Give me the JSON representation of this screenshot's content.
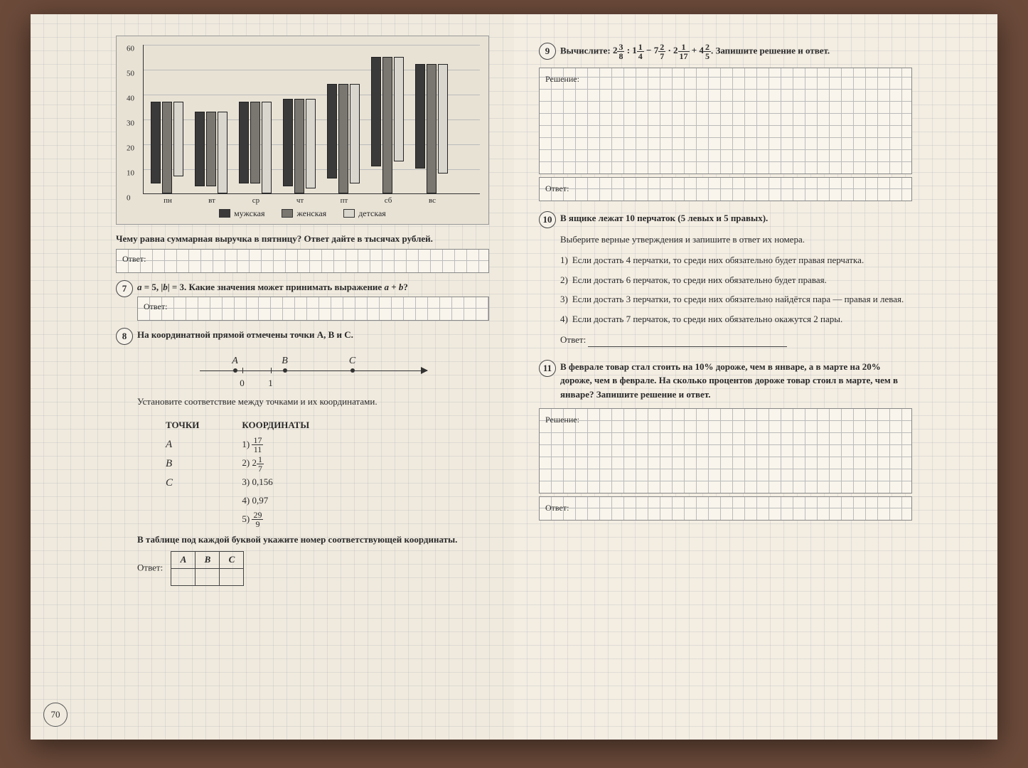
{
  "page_number": "70",
  "chart": {
    "type": "grouped-bar",
    "ylim": [
      0,
      60
    ],
    "ytick_step": 10,
    "yticks": [
      "0",
      "10",
      "20",
      "30",
      "40",
      "50",
      "60"
    ],
    "categories": [
      "пн",
      "вт",
      "ср",
      "чт",
      "пт",
      "сб",
      "вс"
    ],
    "series": [
      {
        "name": "мужская",
        "color": "#3a3a3a",
        "values": [
          33,
          30,
          33,
          35,
          38,
          44,
          42
        ]
      },
      {
        "name": "женская",
        "color": "#7a7770",
        "values": [
          37,
          30,
          33,
          38,
          44,
          55,
          52
        ]
      },
      {
        "name": "детская",
        "color": "#d8d6cd",
        "values": [
          30,
          33,
          37,
          36,
          40,
          42,
          44
        ]
      }
    ],
    "background_color": "#e8e2d5",
    "grid_color": "#bbbbbb"
  },
  "q_chart": {
    "prompt": "Чему равна суммарная выручка в пятницу? Ответ дайте в тысячах рублей.",
    "answer_label": "Ответ:"
  },
  "q7": {
    "num": "7",
    "text_a": "a = 5, |b| = 3. Какие значения может принимать выражение a + b?",
    "answer_label": "Ответ:"
  },
  "q8": {
    "num": "8",
    "text": "На координатной прямой отмечены точки A, B и C.",
    "points": [
      "A",
      "B",
      "C"
    ],
    "below": [
      "0",
      "1"
    ],
    "instr": "Установите соответствие между точками и их координатами.",
    "col1_h": "ТОЧКИ",
    "col2_h": "КООРДИНАТЫ",
    "points_list": [
      "A",
      "B",
      "C"
    ],
    "coords": [
      {
        "n": "1)",
        "val_html": "17/11",
        "frac": {
          "n": "17",
          "d": "11"
        }
      },
      {
        "n": "2)",
        "val_html": "2 1/7",
        "mixed": {
          "w": "2",
          "n": "1",
          "d": "7"
        }
      },
      {
        "n": "3)",
        "val_html": "0,156"
      },
      {
        "n": "4)",
        "val_html": "0,97"
      },
      {
        "n": "5)",
        "val_html": "29/9",
        "frac": {
          "n": "29",
          "d": "9"
        }
      }
    ],
    "footer": "В таблице под каждой буквой укажите номер соответствующей координаты.",
    "answer_label": "Ответ:",
    "tbl_headers": [
      "A",
      "B",
      "C"
    ]
  },
  "q9": {
    "num": "9",
    "prefix": "Вычислите:",
    "suffix": ". Запишите решение и ответ.",
    "expr_parts": {
      "a_w": "2",
      "a_n": "3",
      "a_d": "8",
      "b_w": "1",
      "b_n": "1",
      "b_d": "4",
      "c_w": "7",
      "c_n": "2",
      "c_d": "7",
      "d_w": "2",
      "d_n": "1",
      "d_d": "17",
      "e_w": "4",
      "e_n": "2",
      "e_d": "5"
    },
    "solution_label": "Решение:",
    "answer_label": "Ответ:",
    "solution_height": 150
  },
  "q10": {
    "num": "10",
    "intro": "В ящике лежат 10 перчаток (5 левых и 5 правых).",
    "instr": "Выберите верные утверждения и запишите в ответ их номера.",
    "items": [
      {
        "n": "1)",
        "t": "Если достать 4 перчатки, то среди них обязательно будет правая перчатка."
      },
      {
        "n": "2)",
        "t": "Если достать 6 перчаток, то среди них обязательно будет правая."
      },
      {
        "n": "3)",
        "t": "Если достать 3 перчатки, то среди них обязательно найдётся пара — правая и левая."
      },
      {
        "n": "4)",
        "t": "Если достать 7 перчаток, то среди них обязательно окажутся 2 пары."
      }
    ],
    "answer_label": "Ответ:"
  },
  "q11": {
    "num": "11",
    "text": "В феврале товар стал стоить на 10% дороже, чем в январе, а в марте на 20% дороже, чем в феврале. На сколько процентов дороже товар стоил в марте, чем в январе? Запишите решение и ответ.",
    "solution_label": "Решение:",
    "answer_label": "Ответ:",
    "solution_height": 120
  }
}
